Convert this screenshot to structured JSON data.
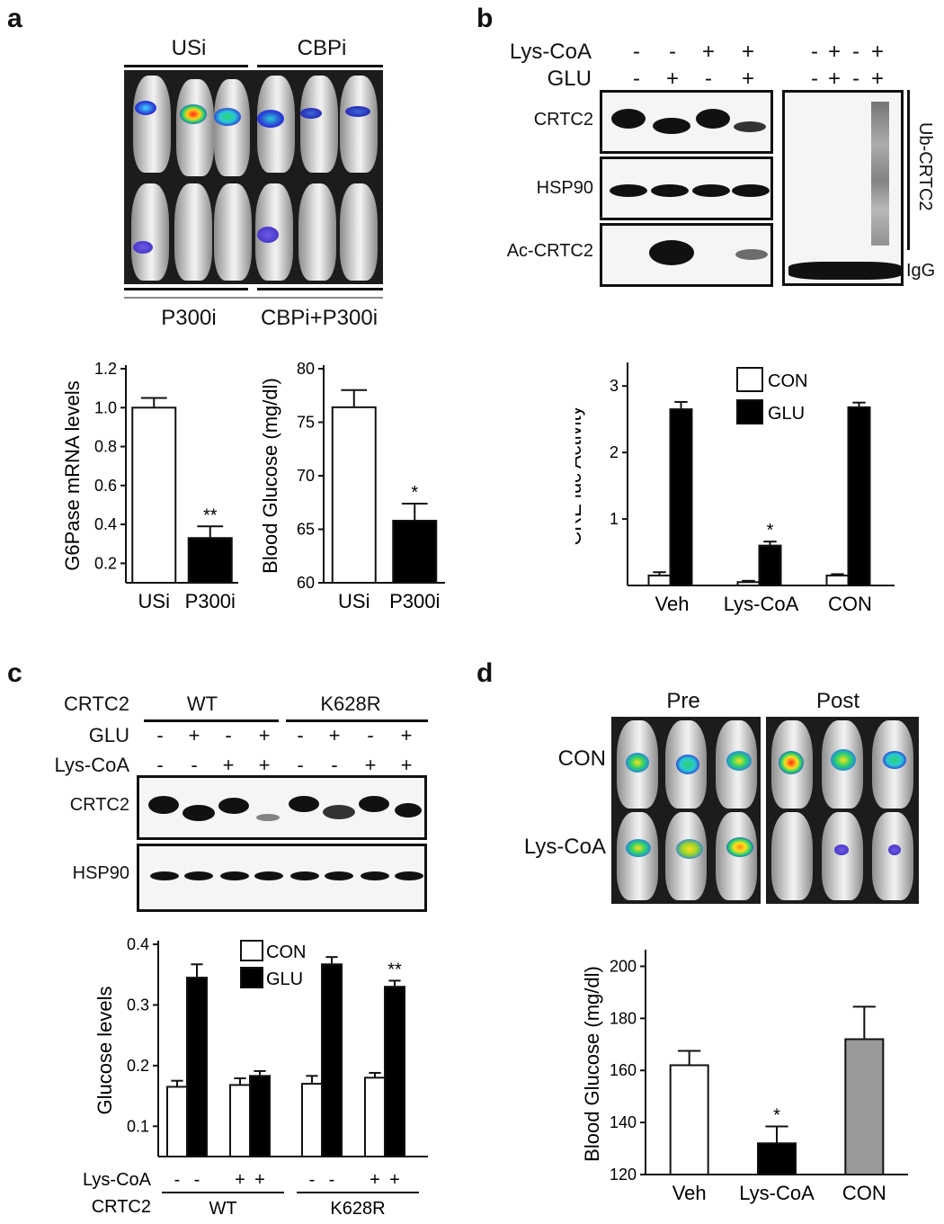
{
  "panels": {
    "a": "a",
    "b": "b",
    "c": "c",
    "d": "d"
  },
  "panel_a": {
    "top_groups": [
      "USi",
      "CBPi"
    ],
    "bottom_groups": [
      "P300i",
      "CBPi+P300i"
    ]
  },
  "panel_b": {
    "row_labels": [
      "Lys-CoA",
      "GLU"
    ],
    "lyscoa_signs": [
      "-",
      "-",
      "+",
      "+"
    ],
    "glu_signs": [
      "-",
      "+",
      "-",
      "+"
    ],
    "ub_lyscoa_signs": [
      "-",
      "+",
      "-",
      "+"
    ],
    "ub_glu_signs": [
      "-",
      "+",
      "-",
      "+"
    ],
    "blot_labels": [
      "CRTC2",
      "HSP90",
      "Ac-CRTC2"
    ],
    "ub_label": "Ub-CRTC2",
    "igg_label": "IgG"
  },
  "panel_c": {
    "row_labels": [
      "CRTC2",
      "GLU",
      "Lys-CoA"
    ],
    "groups": [
      "WT",
      "K628R"
    ],
    "glu_signs": [
      "-",
      "+",
      "-",
      "+",
      "-",
      "+",
      "-",
      "+"
    ],
    "lyscoa_signs": [
      "-",
      "-",
      "+",
      "+",
      "-",
      "-",
      "+",
      "+"
    ],
    "blot_labels": [
      "CRTC2",
      "HSP90"
    ]
  },
  "panel_d": {
    "columns": [
      "Pre",
      "Post"
    ],
    "rows": [
      "CON",
      "Lys-CoA"
    ]
  },
  "chart_data": [
    {
      "id": "a-left",
      "type": "bar",
      "categories": [
        "USi",
        "P300i"
      ],
      "values": [
        1.0,
        0.33
      ],
      "errors": [
        0.05,
        0.06
      ],
      "colors": [
        "#ffffff",
        "#000000"
      ],
      "annotations": [
        "",
        "**"
      ],
      "ylabel": "G6Pase mRNA levels",
      "ylim": [
        0.1,
        1.2
      ],
      "yticks": [
        0.2,
        0.4,
        0.6,
        0.8,
        1.0,
        1.2
      ],
      "ytick_labels": [
        "0.2",
        "0.4",
        "0.6",
        "0.8",
        "1.0",
        "1.2"
      ]
    },
    {
      "id": "a-right",
      "type": "bar",
      "categories": [
        "USi",
        "P300i"
      ],
      "values": [
        76.4,
        65.8
      ],
      "errors": [
        1.6,
        1.6
      ],
      "colors": [
        "#ffffff",
        "#000000"
      ],
      "annotations": [
        "",
        "*"
      ],
      "ylabel": "Blood Glucose (mg/dl)",
      "ylim": [
        60,
        80
      ],
      "yticks": [
        60,
        65,
        70,
        75,
        80
      ],
      "ytick_labels": [
        "60",
        "65",
        "70",
        "75",
        "80"
      ]
    },
    {
      "id": "b-bottom",
      "type": "bar",
      "categories": [
        "Veh",
        "Lys-CoA",
        "CON"
      ],
      "series": [
        {
          "name": "CON",
          "color": "#ffffff",
          "values": [
            0.15,
            0.05,
            0.15
          ],
          "errors": [
            0.05,
            0.02,
            0.02
          ]
        },
        {
          "name": "GLU",
          "color": "#000000",
          "values": [
            2.65,
            0.6,
            2.68
          ],
          "errors": [
            0.11,
            0.06,
            0.07
          ]
        }
      ],
      "annotations": [
        {
          "category": 1,
          "series": 1,
          "text": "*"
        }
      ],
      "ylabel": "CRE luc Activity",
      "ylim": [
        0,
        3.3
      ],
      "yticks": [
        1,
        2,
        3
      ],
      "ytick_labels": [
        "1",
        "2",
        "3"
      ],
      "legend": "top"
    },
    {
      "id": "c-bottom",
      "type": "bar",
      "groups": [
        {
          "series": [
            {
              "name": "CON",
              "values": [
                0.165,
                0.168
              ],
              "errors": [
                0.01,
                0.011
              ]
            },
            {
              "name": "GLU",
              "values": [
                0.345,
                0.183
              ],
              "errors": [
                0.022,
                0.008
              ]
            }
          ]
        },
        {
          "series": [
            {
              "name": "CON",
              "values": [
                0.17,
                0.18
              ],
              "errors": [
                0.013,
                0.008
              ]
            },
            {
              "name": "GLU",
              "values": [
                0.367,
                0.33
              ],
              "errors": [
                0.012,
                0.01
              ]
            }
          ]
        }
      ],
      "legend_entries": [
        {
          "name": "CON",
          "color": "#ffffff"
        },
        {
          "name": "GLU",
          "color": "#000000"
        }
      ],
      "annotations": [
        {
          "text": "**",
          "bar": "K628R Lys-CoA GLU"
        }
      ],
      "ylabel": "Glucose levels",
      "ylim": [
        0.05,
        0.4
      ],
      "yticks": [
        0.1,
        0.2,
        0.3,
        0.4
      ],
      "ytick_labels": [
        "0.1",
        "0.2",
        "0.3",
        "0.4"
      ],
      "xrow1_label": "Lys-CoA",
      "xrow1_signs": [
        "-",
        "-",
        "+",
        "+",
        "-",
        "-",
        "+",
        "+"
      ],
      "xrow2_label": "CRTC2",
      "xrow2_groups": [
        "WT",
        "K628R"
      ]
    },
    {
      "id": "d-bottom",
      "type": "bar",
      "categories": [
        "Veh",
        "Lys-CoA",
        "CON"
      ],
      "values": [
        162,
        132,
        172
      ],
      "errors": [
        5.5,
        6.5,
        12.5
      ],
      "colors": [
        "#ffffff",
        "#000000",
        "#999999"
      ],
      "annotations": [
        "",
        "*",
        ""
      ],
      "ylabel": "Blood Glucose (mg/dl)",
      "ylim": [
        120,
        205
      ],
      "yticks": [
        120,
        140,
        160,
        180,
        200
      ],
      "ytick_labels": [
        "120",
        "140",
        "160",
        "180",
        "200"
      ]
    }
  ]
}
